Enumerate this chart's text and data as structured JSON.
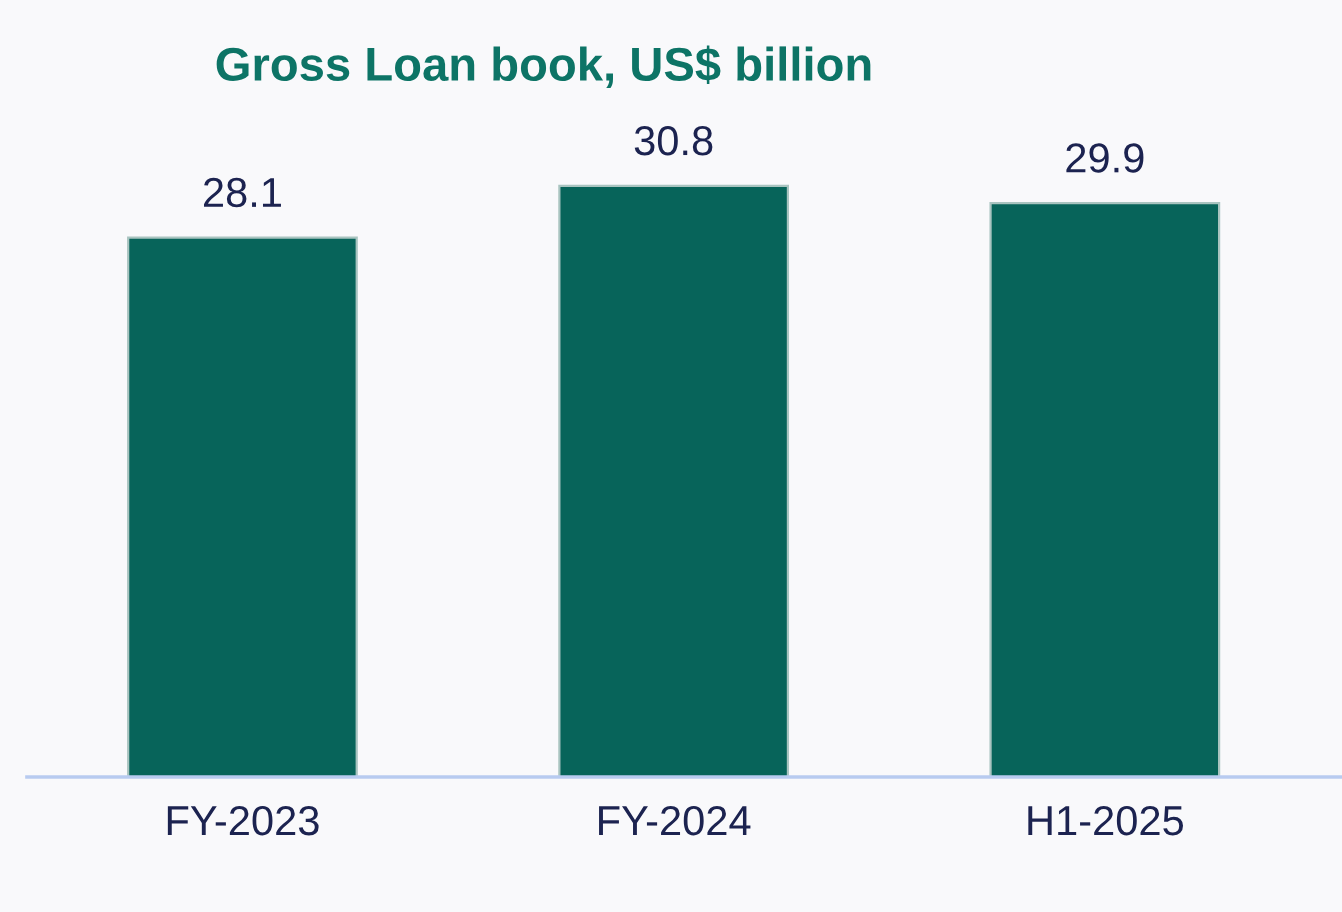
{
  "chart_data": {
    "type": "bar",
    "title": "Gross Loan book, US$ billion",
    "categories": [
      "FY-2023",
      "FY-2024",
      "H1-2025"
    ],
    "values": [
      28.1,
      30.8,
      29.9
    ],
    "color": "#07645a",
    "data_labels": true,
    "grid": false
  }
}
